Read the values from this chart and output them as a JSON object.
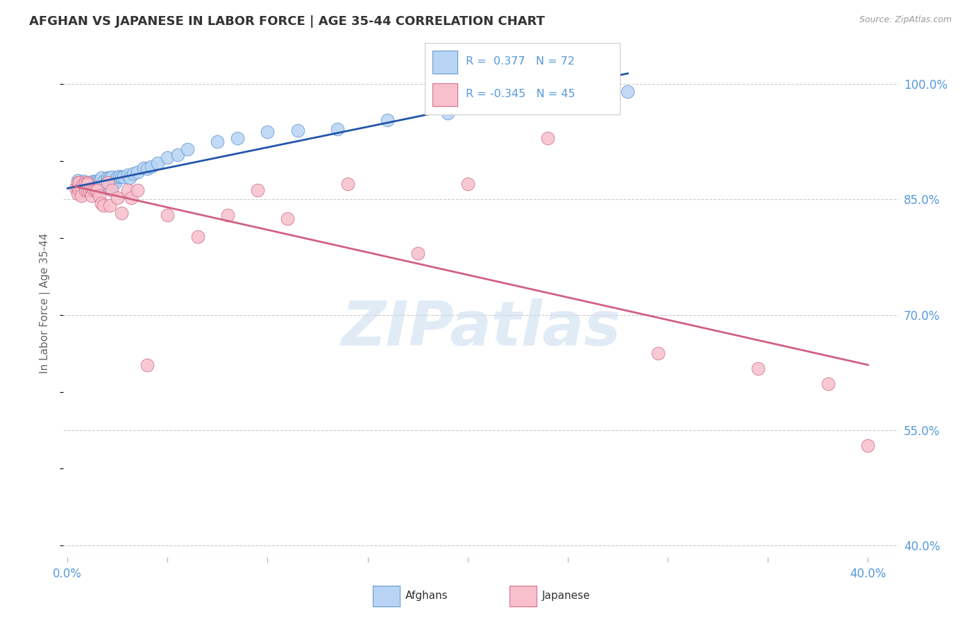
{
  "title": "AFGHAN VS JAPANESE IN LABOR FORCE | AGE 35-44 CORRELATION CHART",
  "source": "Source: ZipAtlas.com",
  "ylabel": "In Labor Force | Age 35-44",
  "ytick_labels": [
    "100.0%",
    "85.0%",
    "70.0%",
    "55.0%",
    "40.0%"
  ],
  "ytick_values": [
    1.0,
    0.85,
    0.7,
    0.55,
    0.4
  ],
  "xlim": [
    -0.002,
    0.415
  ],
  "ylim": [
    0.385,
    1.045
  ],
  "legend_blue_label": "Afghans",
  "legend_pink_label": "Japanese",
  "R_blue": 0.377,
  "N_blue": 72,
  "R_pink": -0.345,
  "N_pink": 45,
  "blue_fill": "#B8D4F5",
  "blue_edge": "#6699CC",
  "blue_line": "#2255AA",
  "pink_fill": "#F8C0CC",
  "pink_edge": "#D07090",
  "pink_line": "#D06080",
  "background_color": "#FFFFFF",
  "grid_color": "#CCCCCC",
  "title_color": "#333333",
  "axis_tick_color": "#5599DD",
  "watermark_color": "#C8DCF0",
  "afghans_x": [
    0.005,
    0.006,
    0.007,
    0.007,
    0.008,
    0.008,
    0.008,
    0.009,
    0.009,
    0.009,
    0.01,
    0.01,
    0.01,
    0.01,
    0.01,
    0.01,
    0.01,
    0.01,
    0.01,
    0.01,
    0.011,
    0.011,
    0.012,
    0.012,
    0.013,
    0.013,
    0.013,
    0.014,
    0.014,
    0.014,
    0.015,
    0.015,
    0.015,
    0.016,
    0.016,
    0.017,
    0.017,
    0.018,
    0.018,
    0.019,
    0.02,
    0.02,
    0.02,
    0.021,
    0.021,
    0.022,
    0.023,
    0.024,
    0.025,
    0.026,
    0.027,
    0.028,
    0.03,
    0.031,
    0.033,
    0.035,
    0.038,
    0.04,
    0.042,
    0.045,
    0.05,
    0.055,
    0.06,
    0.075,
    0.085,
    0.1,
    0.115,
    0.135,
    0.16,
    0.19,
    0.22,
    0.28
  ],
  "afghans_y": [
    0.875,
    0.87,
    0.872,
    0.868,
    0.874,
    0.868,
    0.866,
    0.868,
    0.867,
    0.865,
    0.87,
    0.869,
    0.868,
    0.867,
    0.866,
    0.866,
    0.866,
    0.865,
    0.864,
    0.863,
    0.872,
    0.866,
    0.873,
    0.866,
    0.874,
    0.866,
    0.864,
    0.873,
    0.866,
    0.862,
    0.874,
    0.866,
    0.862,
    0.874,
    0.867,
    0.878,
    0.866,
    0.873,
    0.865,
    0.87,
    0.878,
    0.872,
    0.865,
    0.878,
    0.864,
    0.879,
    0.872,
    0.872,
    0.879,
    0.88,
    0.879,
    0.879,
    0.882,
    0.878,
    0.884,
    0.886,
    0.891,
    0.89,
    0.893,
    0.897,
    0.905,
    0.908,
    0.915,
    0.925,
    0.93,
    0.938,
    0.94,
    0.942,
    0.953,
    0.962,
    0.97,
    0.99
  ],
  "japanese_x": [
    0.004,
    0.005,
    0.005,
    0.005,
    0.006,
    0.006,
    0.007,
    0.007,
    0.008,
    0.009,
    0.009,
    0.01,
    0.01,
    0.01,
    0.011,
    0.012,
    0.012,
    0.013,
    0.014,
    0.015,
    0.016,
    0.017,
    0.018,
    0.02,
    0.021,
    0.022,
    0.025,
    0.027,
    0.03,
    0.032,
    0.035,
    0.04,
    0.05,
    0.065,
    0.08,
    0.095,
    0.11,
    0.14,
    0.175,
    0.2,
    0.24,
    0.295,
    0.345,
    0.38,
    0.4
  ],
  "japanese_y": [
    0.865,
    0.872,
    0.865,
    0.858,
    0.872,
    0.862,
    0.865,
    0.855,
    0.87,
    0.872,
    0.862,
    0.872,
    0.87,
    0.862,
    0.862,
    0.862,
    0.855,
    0.862,
    0.862,
    0.862,
    0.855,
    0.845,
    0.842,
    0.872,
    0.842,
    0.862,
    0.852,
    0.832,
    0.862,
    0.852,
    0.862,
    0.635,
    0.83,
    0.802,
    0.83,
    0.862,
    0.825,
    0.87,
    0.78,
    0.87,
    0.93,
    0.65,
    0.63,
    0.61,
    0.53
  ]
}
